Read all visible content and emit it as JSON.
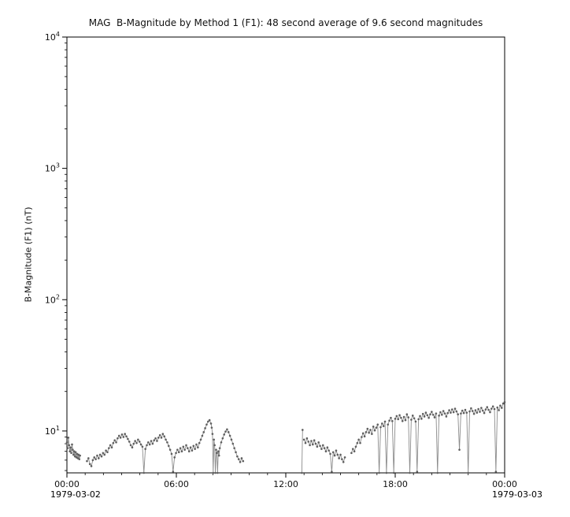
{
  "chart_data": {
    "type": "line",
    "title": "MAG  B-Magnitude by Method 1 (F1): 48 second average of 9.6 second magnitudes",
    "ylabel": "B-Magnitude (F1) (nT)",
    "x_start_date": "1979-03-02",
    "x_end_date": "1979-03-03",
    "xlim_hours": [
      0,
      24
    ],
    "x_ticks": [
      {
        "hour": 0,
        "label": "00:00"
      },
      {
        "hour": 6,
        "label": "06:00"
      },
      {
        "hour": 12,
        "label": "12:00"
      },
      {
        "hour": 18,
        "label": "18:00"
      },
      {
        "hour": 24,
        "label": "00:00"
      }
    ],
    "x_minor_tick_hours": 1,
    "y_scale": "log",
    "ylim": [
      4.8,
      10000
    ],
    "y_major_tick_exponents": [
      1,
      2,
      3,
      4
    ],
    "grid": false,
    "legend": "none",
    "background": "#ffffff",
    "frame_color": "#000000",
    "line_color": "#8c8c8c",
    "marker_color": "#5f5f5f",
    "segments": [
      [
        [
          0.0,
          8.2
        ],
        [
          0.04,
          7.4
        ],
        [
          0.08,
          8.9
        ],
        [
          0.12,
          7.8
        ],
        [
          0.16,
          7.0
        ],
        [
          0.2,
          7.5
        ],
        [
          0.24,
          6.8
        ],
        [
          0.28,
          7.9
        ],
        [
          0.32,
          7.2
        ],
        [
          0.36,
          6.6
        ],
        [
          0.4,
          7.0
        ],
        [
          0.44,
          6.4
        ],
        [
          0.48,
          6.9
        ],
        [
          0.52,
          6.3
        ],
        [
          0.56,
          6.7
        ],
        [
          0.6,
          6.2
        ],
        [
          0.64,
          6.6
        ],
        [
          0.68,
          6.1
        ],
        [
          0.72,
          6.5
        ]
      ],
      [
        [
          1.1,
          5.9
        ],
        [
          1.18,
          6.2
        ],
        [
          1.26,
          5.6
        ],
        [
          1.34,
          5.4
        ],
        [
          1.42,
          6.0
        ],
        [
          1.5,
          6.3
        ],
        [
          1.58,
          6.1
        ],
        [
          1.66,
          6.5
        ],
        [
          1.74,
          6.2
        ],
        [
          1.82,
          6.6
        ],
        [
          1.9,
          6.4
        ],
        [
          1.98,
          6.8
        ],
        [
          2.06,
          6.6
        ],
        [
          2.14,
          7.1
        ],
        [
          2.22,
          6.9
        ],
        [
          2.3,
          7.4
        ],
        [
          2.38,
          7.8
        ],
        [
          2.46,
          7.5
        ],
        [
          2.54,
          8.1
        ],
        [
          2.62,
          8.5
        ],
        [
          2.7,
          8.2
        ],
        [
          2.78,
          8.8
        ],
        [
          2.86,
          9.2
        ],
        [
          2.94,
          8.9
        ],
        [
          3.02,
          9.4
        ],
        [
          3.1,
          9.0
        ],
        [
          3.18,
          9.5
        ],
        [
          3.26,
          9.1
        ],
        [
          3.34,
          8.7
        ],
        [
          3.42,
          8.3
        ],
        [
          3.5,
          7.8
        ],
        [
          3.58,
          7.5
        ],
        [
          3.66,
          8.0
        ],
        [
          3.74,
          8.4
        ],
        [
          3.82,
          8.1
        ],
        [
          3.9,
          8.6
        ],
        [
          3.98,
          8.3
        ],
        [
          4.06,
          7.9
        ],
        [
          4.14,
          7.6
        ],
        [
          4.22,
          4.8
        ],
        [
          4.3,
          7.3
        ],
        [
          4.38,
          7.8
        ],
        [
          4.46,
          8.2
        ],
        [
          4.54,
          7.9
        ],
        [
          4.62,
          8.4
        ],
        [
          4.7,
          8.0
        ],
        [
          4.78,
          8.5
        ],
        [
          4.86,
          8.8
        ],
        [
          4.94,
          8.4
        ],
        [
          5.02,
          8.9
        ],
        [
          5.1,
          9.3
        ],
        [
          5.18,
          8.9
        ],
        [
          5.26,
          9.5
        ],
        [
          5.34,
          9.1
        ],
        [
          5.42,
          8.6
        ],
        [
          5.5,
          8.2
        ],
        [
          5.58,
          7.7
        ],
        [
          5.66,
          7.2
        ],
        [
          5.74,
          6.7
        ],
        [
          5.82,
          4.9
        ],
        [
          5.9,
          6.3
        ],
        [
          5.98,
          6.8
        ],
        [
          6.06,
          7.2
        ],
        [
          6.14,
          6.9
        ],
        [
          6.22,
          7.4
        ],
        [
          6.3,
          7.0
        ],
        [
          6.38,
          7.6
        ],
        [
          6.46,
          7.2
        ],
        [
          6.54,
          7.8
        ],
        [
          6.62,
          7.4
        ],
        [
          6.7,
          7.0
        ],
        [
          6.78,
          7.5
        ],
        [
          6.86,
          7.1
        ],
        [
          6.94,
          7.7
        ],
        [
          7.02,
          7.3
        ],
        [
          7.1,
          7.9
        ],
        [
          7.18,
          7.5
        ],
        [
          7.26,
          8.1
        ],
        [
          7.34,
          8.6
        ],
        [
          7.42,
          9.2
        ],
        [
          7.5,
          9.8
        ],
        [
          7.58,
          10.5
        ],
        [
          7.66,
          11.2
        ],
        [
          7.74,
          11.8
        ],
        [
          7.82,
          12.1
        ],
        [
          7.9,
          11.4
        ],
        [
          7.94,
          10.6
        ],
        [
          7.98,
          9.5
        ],
        [
          8.02,
          4.8
        ],
        [
          8.06,
          8.6
        ],
        [
          8.1,
          7.8
        ],
        [
          8.14,
          4.8
        ],
        [
          8.18,
          7.2
        ],
        [
          8.22,
          6.8
        ],
        [
          8.26,
          4.8
        ],
        [
          8.3,
          7.0
        ],
        [
          8.34,
          6.5
        ],
        [
          8.38,
          7.4
        ],
        [
          8.46,
          8.2
        ],
        [
          8.54,
          8.8
        ],
        [
          8.62,
          9.4
        ],
        [
          8.7,
          9.9
        ],
        [
          8.78,
          10.3
        ],
        [
          8.86,
          9.8
        ],
        [
          8.94,
          9.2
        ],
        [
          9.02,
          8.6
        ],
        [
          9.1,
          8.0
        ],
        [
          9.18,
          7.4
        ],
        [
          9.26,
          6.9
        ],
        [
          9.34,
          6.4
        ],
        [
          9.42,
          6.1
        ],
        [
          9.5,
          5.8
        ],
        [
          9.58,
          6.2
        ],
        [
          9.66,
          5.9
        ]
      ],
      [
        [
          12.88,
          4.8
        ],
        [
          12.92,
          10.2
        ]
      ],
      [
        [
          13.0,
          8.6
        ],
        [
          13.08,
          8.1
        ],
        [
          13.16,
          8.8
        ],
        [
          13.24,
          8.3
        ],
        [
          13.32,
          7.8
        ],
        [
          13.4,
          8.4
        ],
        [
          13.48,
          7.9
        ],
        [
          13.56,
          8.5
        ],
        [
          13.64,
          8.0
        ],
        [
          13.72,
          7.6
        ],
        [
          13.8,
          8.2
        ],
        [
          13.88,
          7.7
        ],
        [
          13.96,
          7.3
        ],
        [
          14.04,
          7.8
        ],
        [
          14.12,
          7.4
        ],
        [
          14.2,
          7.0
        ],
        [
          14.28,
          7.5
        ],
        [
          14.36,
          7.1
        ],
        [
          14.44,
          6.7
        ],
        [
          14.52,
          4.9
        ],
        [
          14.6,
          6.9
        ],
        [
          14.68,
          6.5
        ],
        [
          14.76,
          7.1
        ],
        [
          14.84,
          6.6
        ],
        [
          14.92,
          6.2
        ],
        [
          15.0,
          6.6
        ],
        [
          15.08,
          6.1
        ],
        [
          15.16,
          5.8
        ],
        [
          15.24,
          6.3
        ]
      ],
      [
        [
          15.6,
          6.8
        ],
        [
          15.68,
          7.3
        ],
        [
          15.76,
          7.0
        ],
        [
          15.84,
          7.6
        ],
        [
          15.92,
          8.1
        ],
        [
          16.0,
          8.6
        ],
        [
          16.08,
          8.1
        ],
        [
          16.16,
          9.0
        ],
        [
          16.24,
          9.6
        ],
        [
          16.32,
          9.1
        ],
        [
          16.4,
          9.8
        ],
        [
          16.48,
          10.4
        ],
        [
          16.56,
          9.7
        ],
        [
          16.64,
          10.2
        ],
        [
          16.72,
          9.5
        ],
        [
          16.8,
          10.8
        ],
        [
          16.88,
          10.1
        ],
        [
          16.96,
          10.6
        ],
        [
          17.04,
          11.2
        ],
        [
          17.12,
          4.8
        ],
        [
          17.2,
          10.7
        ],
        [
          17.28,
          11.4
        ],
        [
          17.36,
          10.9
        ],
        [
          17.44,
          11.8
        ],
        [
          17.52,
          4.8
        ],
        [
          17.6,
          11.2
        ],
        [
          17.68,
          12.0
        ],
        [
          17.76,
          12.6
        ],
        [
          17.84,
          11.9
        ],
        [
          17.92,
          4.8
        ],
        [
          18.0,
          12.4
        ],
        [
          18.08,
          13.0
        ],
        [
          18.16,
          12.3
        ],
        [
          18.24,
          13.2
        ],
        [
          18.32,
          12.6
        ],
        [
          18.4,
          11.9
        ],
        [
          18.48,
          12.8
        ],
        [
          18.56,
          12.1
        ],
        [
          18.64,
          13.4
        ],
        [
          18.72,
          12.7
        ],
        [
          18.8,
          4.8
        ],
        [
          18.88,
          12.2
        ],
        [
          18.96,
          13.1
        ],
        [
          19.04,
          12.5
        ],
        [
          19.12,
          11.8
        ],
        [
          19.2,
          4.9
        ],
        [
          19.28,
          12.3
        ],
        [
          19.36,
          13.0
        ],
        [
          19.44,
          12.4
        ],
        [
          19.52,
          13.5
        ],
        [
          19.6,
          12.9
        ],
        [
          19.68,
          13.8
        ],
        [
          19.76,
          13.2
        ],
        [
          19.84,
          12.6
        ],
        [
          19.92,
          13.4
        ],
        [
          20.0,
          14.0
        ],
        [
          20.08,
          13.3
        ],
        [
          20.16,
          12.7
        ],
        [
          20.24,
          13.6
        ],
        [
          20.32,
          4.8
        ],
        [
          20.4,
          13.1
        ],
        [
          20.48,
          13.9
        ],
        [
          20.56,
          13.3
        ],
        [
          20.64,
          14.2
        ],
        [
          20.72,
          13.6
        ],
        [
          20.8,
          12.9
        ],
        [
          20.88,
          13.7
        ],
        [
          20.96,
          14.4
        ],
        [
          21.04,
          13.8
        ],
        [
          21.12,
          14.6
        ],
        [
          21.2,
          13.9
        ],
        [
          21.28,
          14.8
        ],
        [
          21.36,
          14.1
        ],
        [
          21.44,
          13.4
        ],
        [
          21.52,
          7.2
        ],
        [
          21.6,
          13.6
        ],
        [
          21.68,
          14.3
        ],
        [
          21.76,
          13.7
        ],
        [
          21.84,
          14.5
        ],
        [
          21.92,
          13.8
        ],
        [
          22.0,
          4.8
        ],
        [
          22.08,
          14.1
        ],
        [
          22.16,
          14.9
        ],
        [
          22.24,
          14.2
        ],
        [
          22.32,
          13.5
        ],
        [
          22.4,
          14.4
        ],
        [
          22.48,
          13.8
        ],
        [
          22.56,
          14.7
        ],
        [
          22.64,
          14.0
        ],
        [
          22.72,
          15.0
        ],
        [
          22.8,
          14.3
        ],
        [
          22.88,
          13.7
        ],
        [
          22.96,
          14.6
        ],
        [
          23.04,
          15.2
        ],
        [
          23.12,
          14.5
        ],
        [
          23.2,
          13.9
        ],
        [
          23.28,
          14.8
        ],
        [
          23.36,
          15.4
        ],
        [
          23.44,
          14.7
        ],
        [
          23.52,
          4.9
        ],
        [
          23.6,
          15.1
        ],
        [
          23.68,
          14.4
        ],
        [
          23.76,
          15.6
        ],
        [
          23.84,
          15.0
        ],
        [
          23.92,
          16.2
        ],
        [
          24.0,
          16.6
        ]
      ]
    ]
  }
}
